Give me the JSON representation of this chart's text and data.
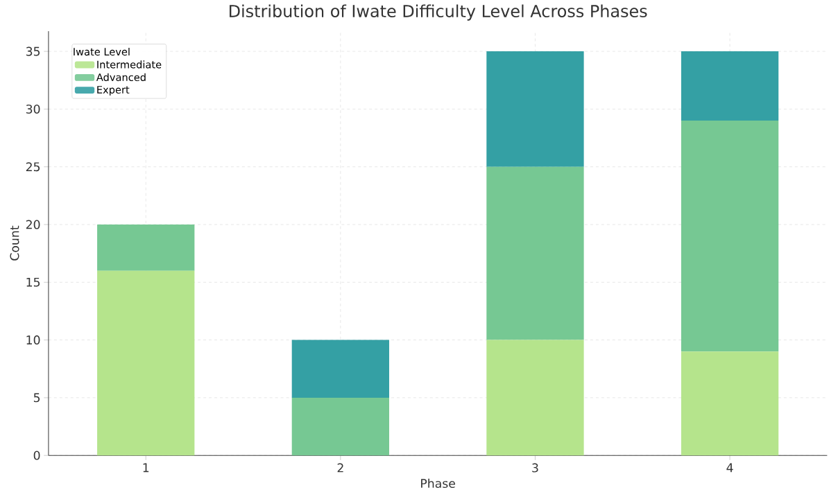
{
  "chart_data": {
    "type": "bar",
    "stacked": true,
    "title": "Distribution of Iwate Difficulty Level Across Phases",
    "xlabel": "Phase",
    "ylabel": "Count",
    "legend_title": "Iwate Level",
    "categories": [
      "1",
      "2",
      "3",
      "4"
    ],
    "series": [
      {
        "name": "Intermediate",
        "color": "#b5e48c",
        "values": [
          16,
          0,
          10,
          9
        ]
      },
      {
        "name": "Advanced",
        "color": "#76c893",
        "values": [
          4,
          5,
          15,
          20
        ]
      },
      {
        "name": "Expert",
        "color": "#34a0a4",
        "values": [
          0,
          5,
          10,
          6
        ]
      }
    ],
    "ylim": [
      0,
      36.75
    ],
    "yticks": [
      0,
      5,
      10,
      15,
      20,
      25,
      30,
      35
    ],
    "grid": true,
    "legend": "top left"
  }
}
